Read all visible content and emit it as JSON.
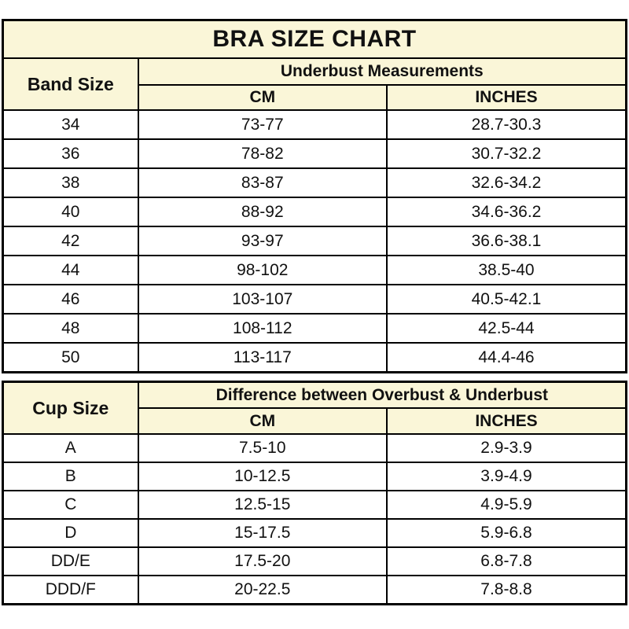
{
  "colors": {
    "header_bg": "#FAF6D8",
    "row_bg": "#ffffff",
    "border": "#000000",
    "text": "#111111"
  },
  "chart_data": [
    {
      "type": "table",
      "title": "BRA SIZE CHART",
      "corner_header": "Band Size",
      "group_header": "Underbust Measurements",
      "columns": [
        "CM",
        "INCHES"
      ],
      "rows": [
        [
          "34",
          "73-77",
          "28.7-30.3"
        ],
        [
          "36",
          "78-82",
          "30.7-32.2"
        ],
        [
          "38",
          "83-87",
          "32.6-34.2"
        ],
        [
          "40",
          "88-92",
          "34.6-36.2"
        ],
        [
          "42",
          "93-97",
          "36.6-38.1"
        ],
        [
          "44",
          "98-102",
          "38.5-40"
        ],
        [
          "46",
          "103-107",
          "40.5-42.1"
        ],
        [
          "48",
          "108-112",
          "42.5-44"
        ],
        [
          "50",
          "113-117",
          "44.4-46"
        ]
      ]
    },
    {
      "type": "table",
      "corner_header": "Cup Size",
      "group_header": "Difference between Overbust & Underbust",
      "columns": [
        "CM",
        "INCHES"
      ],
      "rows": [
        [
          "A",
          "7.5-10",
          "2.9-3.9"
        ],
        [
          "B",
          "10-12.5",
          "3.9-4.9"
        ],
        [
          "C",
          "12.5-15",
          "4.9-5.9"
        ],
        [
          "D",
          "15-17.5",
          "5.9-6.8"
        ],
        [
          "DD/E",
          "17.5-20",
          "6.8-7.8"
        ],
        [
          "DDD/F",
          "20-22.5",
          "7.8-8.8"
        ]
      ]
    }
  ]
}
